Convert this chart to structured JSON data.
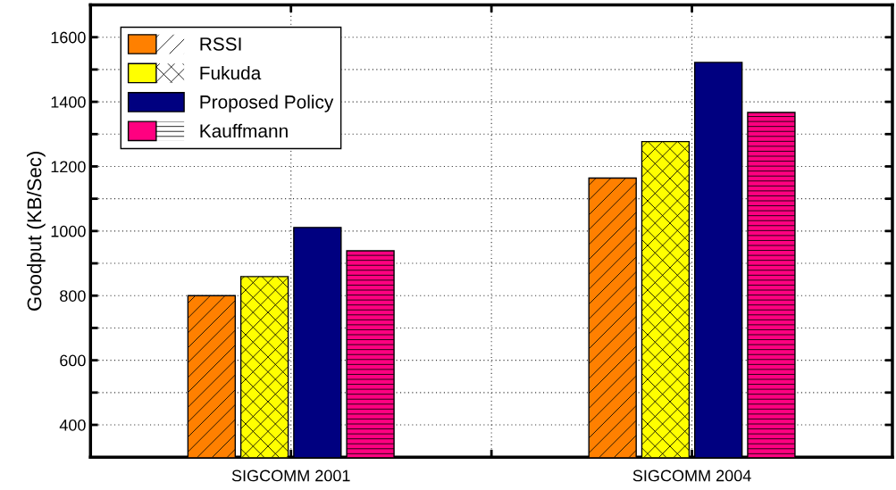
{
  "chart_data": {
    "type": "bar",
    "ylabel": "Goodput (KB/Sec)",
    "categories": [
      "SIGCOMM 2001",
      "SIGCOMM 2004"
    ],
    "series": [
      {
        "name": "RSSI",
        "color": "#ff8000",
        "values": [
          800,
          1164
        ]
      },
      {
        "name": "Fukuda",
        "color": "#ffff00",
        "values": [
          859,
          1277
        ]
      },
      {
        "name": "Proposed Policy",
        "color": "#000080",
        "values": [
          1011,
          1522
        ]
      },
      {
        "name": "Kauffmann",
        "color": "#ff0080",
        "values": [
          939,
          1367
        ]
      }
    ],
    "ylim": [
      300,
      1700
    ],
    "yticks": [
      400,
      {
        "value": 500,
        "label": null
      },
      600,
      {
        "value": 700,
        "label": null
      },
      800,
      {
        "value": 900,
        "label": null
      },
      1000,
      {
        "value": 1100,
        "label": null
      },
      1200,
      {
        "value": 1300,
        "label": null
      },
      1400,
      {
        "value": 1500,
        "label": null
      },
      1600
    ],
    "grid": true,
    "legend": "top left"
  }
}
